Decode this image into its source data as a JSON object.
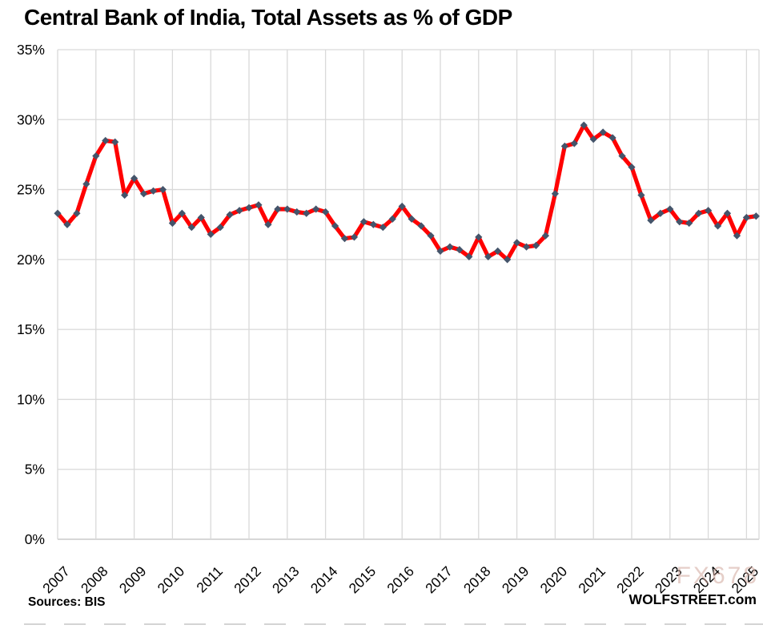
{
  "page": {
    "title": "Central Bank of India, Total Assets as % of GDP",
    "source_note": "Sources: BIS",
    "branding": "WOLFSTREET.com",
    "watermark": "FX678"
  },
  "chart_data": {
    "type": "line",
    "title": "Central Bank of India, Total Assets as % of GDP",
    "series_name": "Central bank total assets as % of GDP",
    "frequency": "quarterly",
    "start_year": 2007,
    "start_quarter": 1,
    "values": [
      23.3,
      22.5,
      23.3,
      25.4,
      27.4,
      28.5,
      28.4,
      24.6,
      25.8,
      24.7,
      24.9,
      25.0,
      22.6,
      23.3,
      22.3,
      23.0,
      21.8,
      22.3,
      23.2,
      23.5,
      23.7,
      23.9,
      22.5,
      23.6,
      23.6,
      23.4,
      23.3,
      23.6,
      23.4,
      22.4,
      21.5,
      21.6,
      22.7,
      22.5,
      22.3,
      22.9,
      23.8,
      22.9,
      22.4,
      21.7,
      20.6,
      20.9,
      20.7,
      20.2,
      21.6,
      20.2,
      20.6,
      20.0,
      21.2,
      20.9,
      21.0,
      21.7,
      24.7,
      28.1,
      28.3,
      29.6,
      28.6,
      29.1,
      28.7,
      27.4,
      26.6,
      24.6,
      22.8,
      23.3,
      23.6,
      22.7,
      22.6,
      23.3,
      23.5,
      22.4,
      23.3,
      21.7,
      23.0,
      23.1
    ],
    "x_tick_labels": [
      "2007",
      "2008",
      "2009",
      "2010",
      "2011",
      "2012",
      "2013",
      "2014",
      "2015",
      "2016",
      "2017",
      "2018",
      "2019",
      "2020",
      "2021",
      "2022",
      "2023",
      "2024",
      "2025"
    ],
    "y_tick_labels": [
      "0%",
      "5%",
      "10%",
      "15%",
      "20%",
      "25%",
      "30%",
      "35%"
    ],
    "ylim": [
      0,
      35
    ],
    "y_step": 5,
    "grid": true,
    "legend": "none",
    "line_color": "#ff0000",
    "marker_color": "#44546a",
    "marker_shape": "diamond",
    "gridline_color": "#d9d9d9",
    "axis_line_color": "#bfbfbf"
  }
}
